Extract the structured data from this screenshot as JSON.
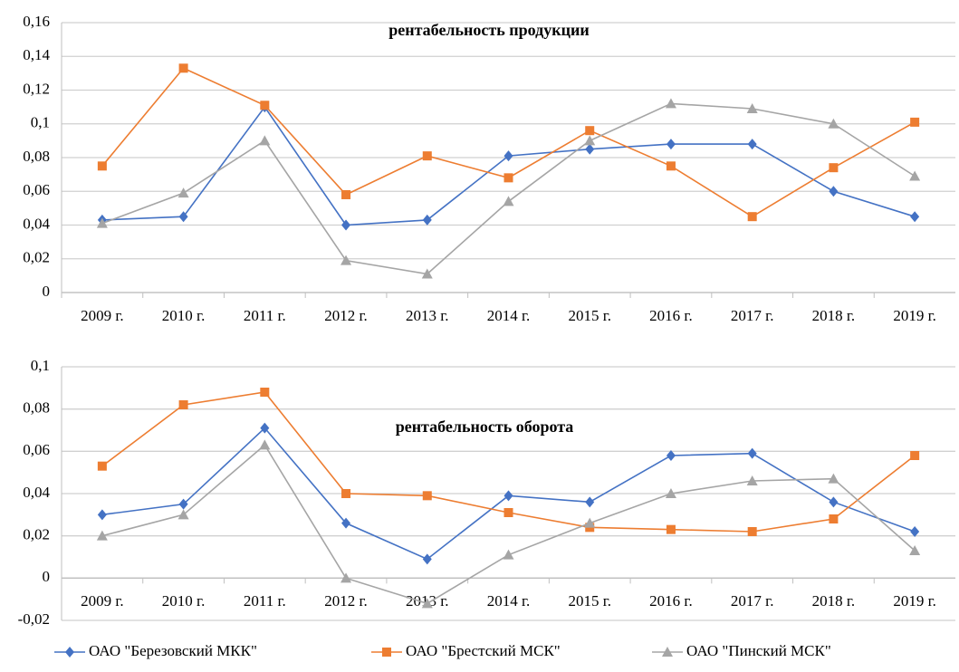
{
  "chart_data": [
    {
      "type": "line",
      "title": "рентабельность продукции",
      "categories": [
        "2009 г.",
        "2010 г.",
        "2011 г.",
        "2012 г.",
        "2013 г.",
        "2014 г.",
        "2015 г.",
        "2016 г.",
        "2017 г.",
        "2018 г.",
        "2019 г."
      ],
      "series": [
        {
          "color": "#4472c4",
          "values": [
            0.043,
            0.045,
            0.11,
            0.04,
            0.043,
            0.081,
            0.085,
            0.088,
            0.088,
            0.06,
            0.045
          ]
        },
        {
          "color": "#ed7d31",
          "values": [
            0.075,
            0.133,
            0.111,
            0.058,
            0.081,
            0.068,
            0.096,
            0.075,
            0.045,
            0.074,
            0.101
          ]
        },
        {
          "color": "#a5a5a5",
          "values": [
            0.041,
            0.059,
            0.09,
            0.019,
            0.011,
            0.054,
            0.09,
            0.112,
            0.109,
            0.1,
            0.069
          ]
        }
      ],
      "ylim": [
        0,
        0.16
      ],
      "yticks": [
        0,
        {
          "value": 0.02,
          "label": "0,02"
        },
        {
          "value": 0.04,
          "label": "0,04"
        },
        {
          "value": 0.06,
          "label": "0,06"
        },
        {
          "value": 0.08,
          "label": "0,08"
        },
        {
          "value": 0.1,
          "label": "0,1"
        },
        {
          "value": 0.12,
          "label": "0,12"
        },
        {
          "value": 0.14,
          "label": "0,14"
        },
        {
          "value": 0.16,
          "label": "0,16"
        }
      ],
      "grid": true
    },
    {
      "type": "line",
      "title": "рентабельность оборота",
      "categories": [
        "2009 г.",
        "2010 г.",
        "2011 г.",
        "2012 г.",
        "2013 г.",
        "2014 г.",
        "2015 г.",
        "2016 г.",
        "2017 г.",
        "2018 г.",
        "2019 г."
      ],
      "series": [
        {
          "name": "ОАО \"Березовский МКК\"",
          "color": "#4472c4",
          "values": [
            0.03,
            0.035,
            0.071,
            0.026,
            0.009,
            0.039,
            0.036,
            0.058,
            0.059,
            0.036,
            0.022
          ]
        },
        {
          "name": "ОАО \"Брестский МСК\"",
          "color": "#ed7d31",
          "values": [
            0.053,
            0.082,
            0.088,
            0.04,
            0.039,
            0.031,
            0.024,
            0.023,
            0.022,
            0.028,
            0.058
          ]
        },
        {
          "name": "ОАО \"Пинский МСК\"",
          "color": "#a5a5a5",
          "values": [
            0.02,
            0.03,
            0.063,
            0,
            -0.012,
            0.011,
            0.026,
            0.04,
            0.046,
            0.047,
            0.013
          ]
        }
      ],
      "ylim": [
        -0.02,
        0.1
      ],
      "yticks": [
        {
          "value": -0.02,
          "label": "-0,02"
        },
        0,
        {
          "value": 0.02,
          "label": "0,02"
        },
        {
          "value": 0.04,
          "label": "0,04"
        },
        {
          "value": 0.06,
          "label": "0,06"
        },
        {
          "value": 0.08,
          "label": "0,08"
        },
        {
          "value": 0.1,
          "label": "0,1"
        }
      ],
      "grid": true
    }
  ]
}
